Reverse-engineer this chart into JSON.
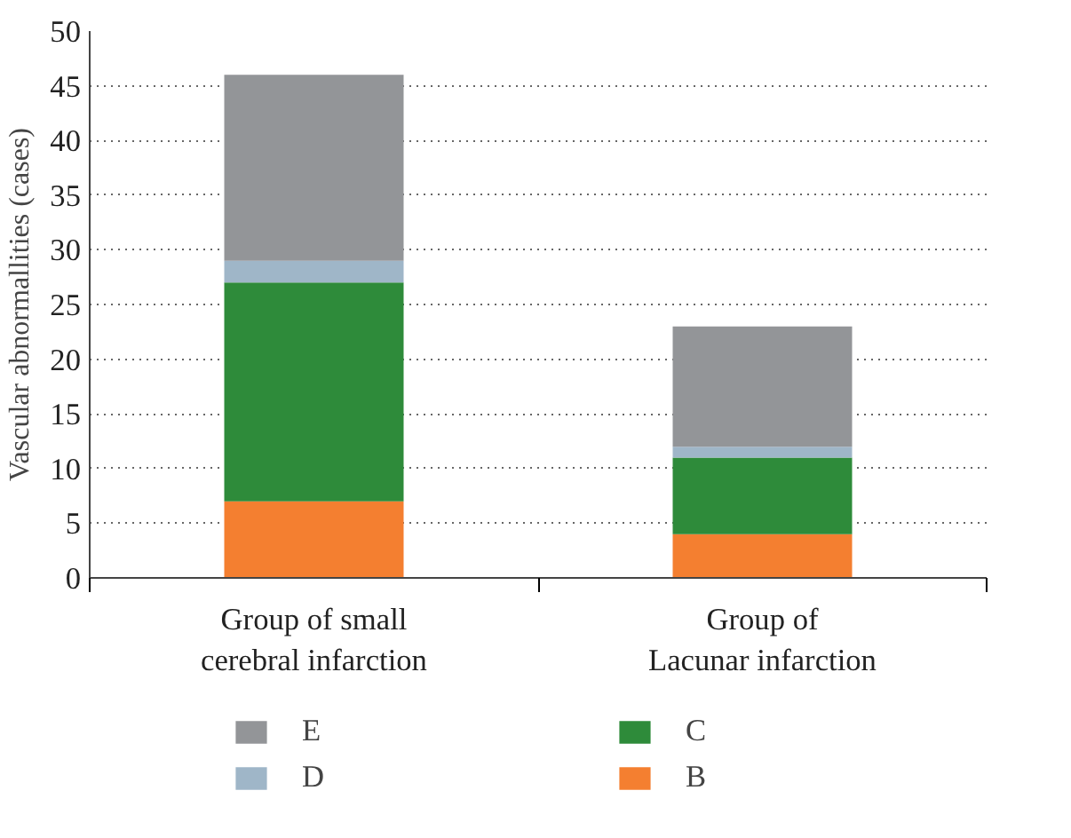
{
  "chart_data": {
    "type": "bar",
    "stacked": true,
    "ylabel": "Vascular abnormallities (cases)",
    "categories": [
      "Group of small\ncerebral infarction",
      "Group of\nLacunar infarction"
    ],
    "series": [
      {
        "name": "B",
        "color": "#f47f30",
        "values": [
          7,
          4
        ]
      },
      {
        "name": "C",
        "color": "#2e8b3a",
        "values": [
          20,
          7
        ]
      },
      {
        "name": "D",
        "color": "#9fb6c8",
        "values": [
          2,
          1
        ]
      },
      {
        "name": "E",
        "color": "#939598",
        "values": [
          17,
          11
        ]
      }
    ],
    "ylim": [
      0,
      50
    ],
    "yticks": [
      0,
      5,
      10,
      15,
      20,
      25,
      30,
      35,
      40,
      45,
      50
    ],
    "grid": "y",
    "legend": "bottom"
  }
}
